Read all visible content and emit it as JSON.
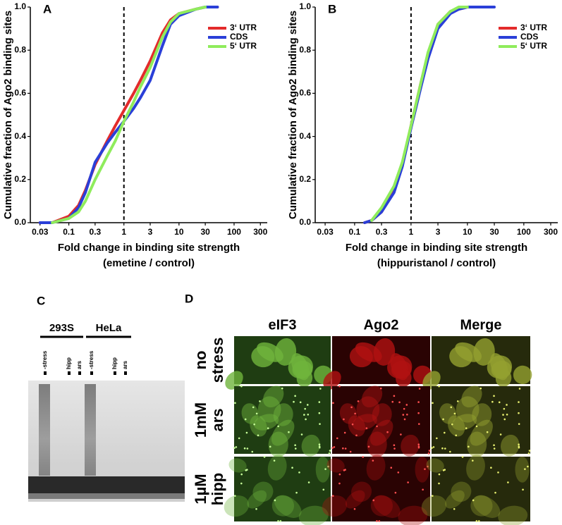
{
  "chart_data": [
    {
      "type": "line",
      "panel_label": "A",
      "ylabel": "Cumulative fraction of Ago2 binding sites",
      "xlabel": [
        "Fold change in binding site strength",
        "(emetine / control)"
      ],
      "log_x": true,
      "xlim": [
        0.02,
        400
      ],
      "xticks": [
        0.03,
        0.1,
        0.3,
        1,
        3,
        10,
        30,
        100,
        300
      ],
      "ylim": [
        0,
        1
      ],
      "yticks": [
        {
          "value": 0,
          "label": "0.0"
        },
        0.2,
        0.4,
        0.6,
        0.8,
        {
          "value": 1,
          "label": "1.0"
        }
      ],
      "reference_x": 1,
      "legend": "upper right",
      "x": [
        0.03,
        0.05,
        0.1,
        0.15,
        0.2,
        0.3,
        0.5,
        0.7,
        1,
        1.5,
        2,
        3,
        5,
        7,
        10,
        20,
        30,
        50
      ],
      "series": [
        {
          "name": "3‘ UTR",
          "color": "#e32b2b",
          "values": [
            0.0,
            0.0,
            0.03,
            0.08,
            0.15,
            0.27,
            0.38,
            0.45,
            0.52,
            0.6,
            0.66,
            0.75,
            0.88,
            0.94,
            0.97,
            0.99,
            1.0,
            1.0
          ]
        },
        {
          "name": "CDS",
          "color": "#2a3fd8",
          "values": [
            0.0,
            0.0,
            0.02,
            0.07,
            0.14,
            0.28,
            0.37,
            0.42,
            0.47,
            0.53,
            0.58,
            0.66,
            0.82,
            0.92,
            0.96,
            0.99,
            1.0,
            1.0
          ]
        },
        {
          "name": "5‘ UTR",
          "color": "#8fec5c",
          "values": [
            null,
            0.0,
            0.02,
            0.05,
            0.1,
            0.2,
            0.31,
            0.38,
            0.47,
            0.56,
            0.63,
            0.72,
            0.86,
            0.93,
            0.97,
            0.99,
            1.0,
            null
          ]
        }
      ]
    },
    {
      "type": "line",
      "panel_label": "B",
      "ylabel": "Cumulative fraction of Ago2 binding sites",
      "xlabel": [
        "Fold change in binding site strength",
        "(hippuristanol / control)"
      ],
      "log_x": true,
      "xlim": [
        0.02,
        400
      ],
      "xticks": [
        0.03,
        0.1,
        0.3,
        1,
        3,
        10,
        30,
        100,
        300
      ],
      "ylim": [
        0,
        1
      ],
      "yticks": [
        {
          "value": 0,
          "label": "0.0"
        },
        0.2,
        0.4,
        0.6,
        0.8,
        {
          "value": 1,
          "label": "1.0"
        }
      ],
      "reference_x": 1,
      "legend": "upper right",
      "x": [
        0.15,
        0.2,
        0.3,
        0.5,
        0.7,
        1,
        1.5,
        2,
        3,
        5,
        7,
        10,
        30
      ],
      "series": [
        {
          "name": "3‘ UTR",
          "color": "#e32b2b",
          "values": [
            0.0,
            0.01,
            0.05,
            0.15,
            0.27,
            0.45,
            0.65,
            0.78,
            0.92,
            0.98,
            0.99,
            1.0,
            null
          ]
        },
        {
          "name": "CDS",
          "color": "#2a3fd8",
          "values": [
            0.0,
            0.01,
            0.05,
            0.14,
            0.26,
            0.44,
            0.63,
            0.76,
            0.9,
            0.97,
            0.99,
            1.0,
            1.0
          ]
        },
        {
          "name": "5‘ UTR",
          "color": "#8fec5c",
          "values": [
            null,
            0.01,
            0.07,
            0.17,
            0.28,
            0.45,
            0.65,
            0.79,
            0.92,
            0.98,
            1.0,
            1.0,
            null
          ]
        }
      ]
    }
  ],
  "panel_c": {
    "label": "C",
    "groups": [
      "293S",
      "HeLa"
    ],
    "lanes": [
      "-stress",
      "hipp",
      "ars",
      "-stress",
      "hipp",
      "ars"
    ]
  },
  "panel_d": {
    "label": "D",
    "columns": [
      "eIF3",
      "Ago2",
      "Merge"
    ],
    "rows": [
      [
        "no",
        "stress"
      ],
      [
        "1mM",
        "ars"
      ],
      [
        "1µM",
        "hipp"
      ]
    ]
  }
}
